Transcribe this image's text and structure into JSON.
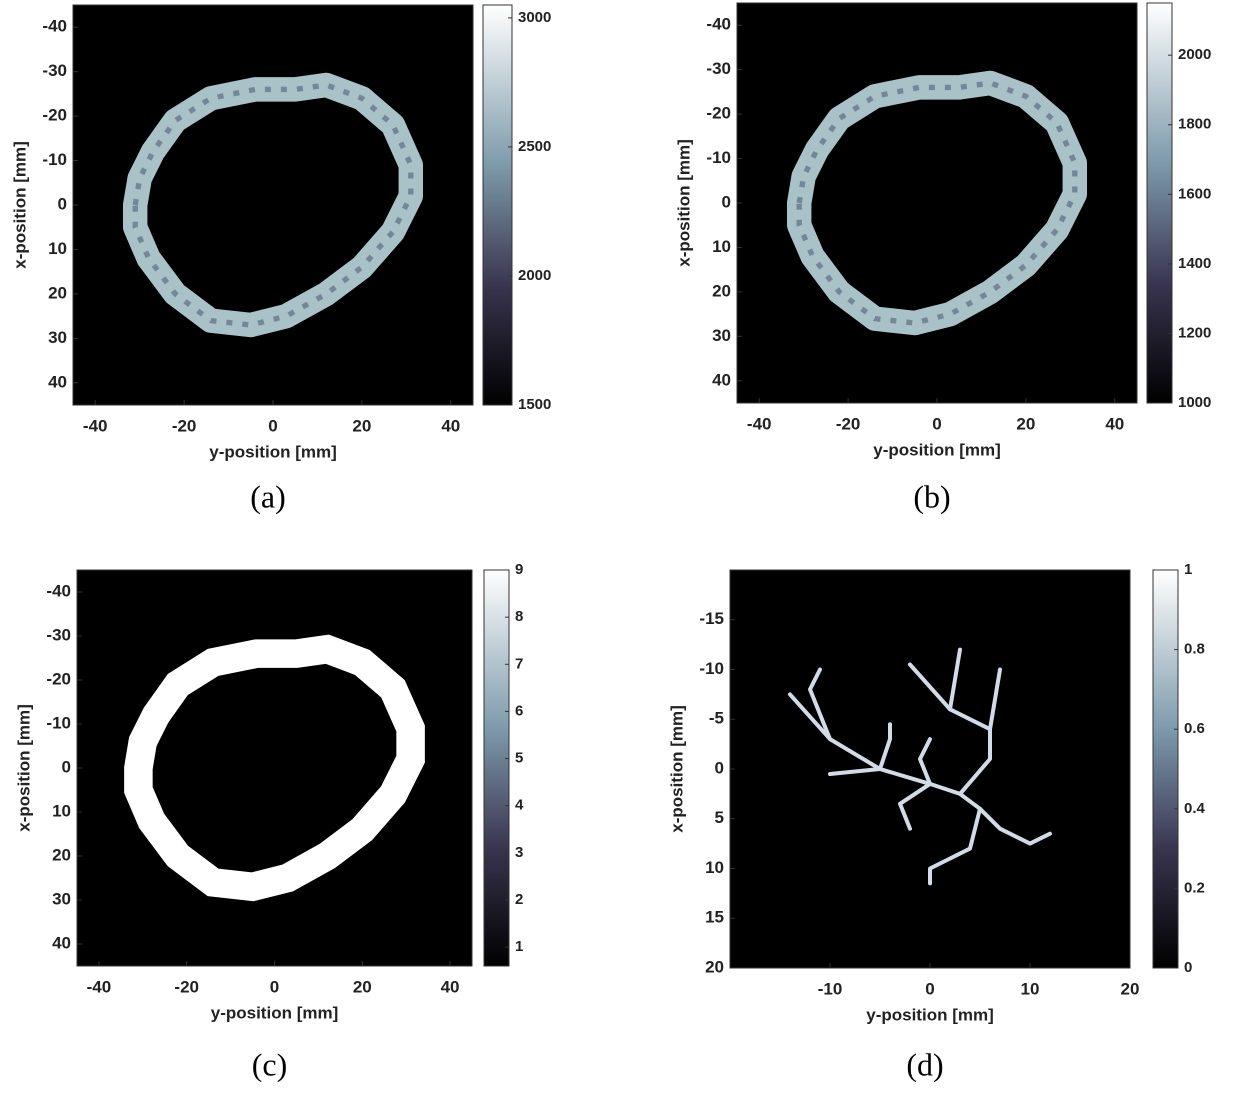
{
  "chart_data": [
    {
      "type": "image",
      "caption": "(a)",
      "xlabel": "y-position [mm]",
      "ylabel": "x-position [mm]",
      "xlim": [
        -45,
        45
      ],
      "xticks": [
        -40,
        -20,
        0,
        20,
        40
      ],
      "ylim": [
        45,
        -45
      ],
      "yticks": [
        -40,
        -30,
        -20,
        -10,
        0,
        10,
        20,
        30,
        40
      ],
      "clim": [
        1500,
        3050
      ],
      "cticks": [
        1500,
        2000,
        2500,
        3000
      ]
    },
    {
      "type": "image",
      "caption": "(b)",
      "xlabel": "y-position [mm]",
      "ylabel": "x-position [mm]",
      "xlim": [
        -45,
        45
      ],
      "xticks": [
        -40,
        -20,
        0,
        20,
        40
      ],
      "ylim": [
        45,
        -45
      ],
      "yticks": [
        -40,
        -30,
        -20,
        -10,
        0,
        10,
        20,
        30,
        40
      ],
      "clim": [
        1000,
        2150
      ],
      "cticks": [
        1000,
        1200,
        1400,
        1600,
        1800,
        2000
      ]
    },
    {
      "type": "image",
      "caption": "(c)",
      "xlabel": "y-position [mm]",
      "ylabel": "x-position [mm]",
      "xlim": [
        -45,
        45
      ],
      "xticks": [
        -40,
        -20,
        0,
        20,
        40
      ],
      "ylim": [
        45,
        -45
      ],
      "yticks": [
        -40,
        -30,
        -20,
        -10,
        0,
        10,
        20,
        30,
        40
      ],
      "clim": [
        0.6,
        9
      ],
      "cticks": [
        1,
        2,
        3,
        4,
        5,
        6,
        7,
        8,
        9
      ]
    },
    {
      "type": "image",
      "caption": "(d)",
      "xlabel": "y-position [mm]",
      "ylabel": "x-position [mm]",
      "xlim": [
        -20,
        20
      ],
      "xticks": [
        -10,
        0,
        10,
        20
      ],
      "ylim": [
        20,
        -20
      ],
      "yticks": [
        -15,
        -10,
        -5,
        0,
        5,
        10,
        15,
        20
      ],
      "clim": [
        0,
        1
      ],
      "cticks": [
        0,
        0.2,
        0.4,
        0.6,
        0.8,
        1
      ]
    }
  ]
}
